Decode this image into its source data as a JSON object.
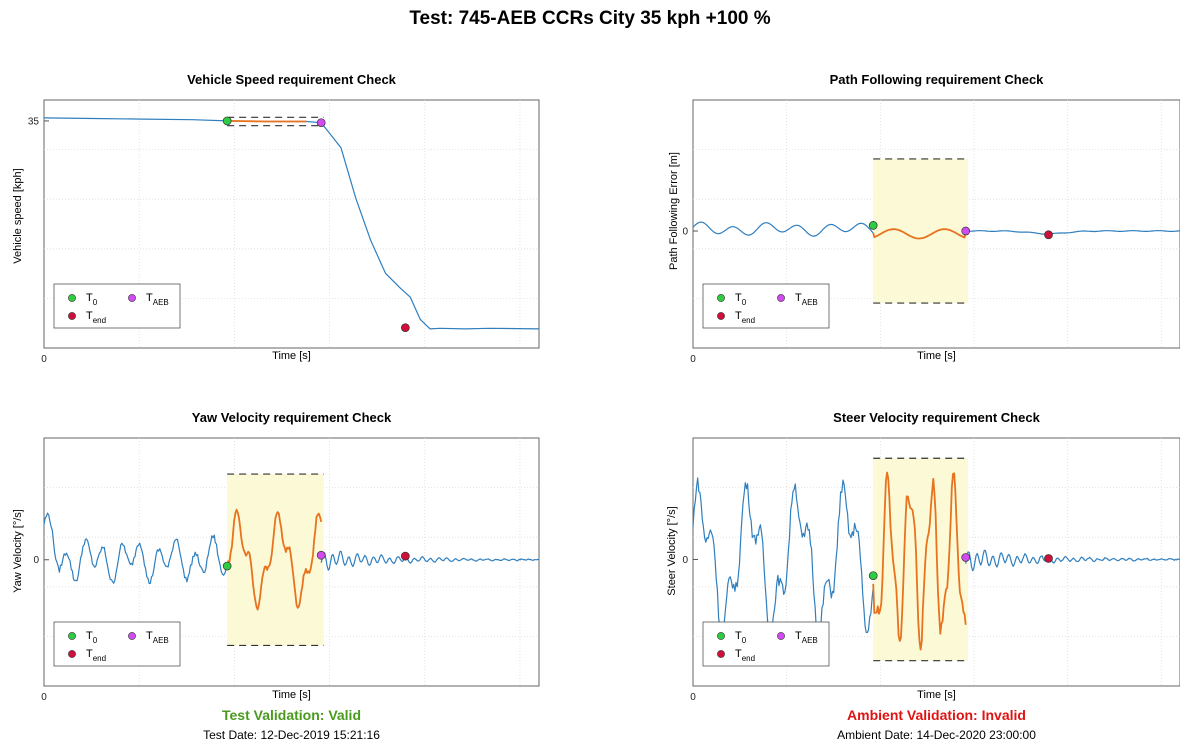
{
  "title": "Test: 745-AEB CCRs City 35 kph +100 %",
  "colors": {
    "signal": "#2f7fbf",
    "window": "#e8731f",
    "band": "#fbf9d6",
    "t0": "#2ecc40",
    "tend": "#d0103a",
    "taeb": "#d24bf0",
    "valid": "#4a9a1e",
    "invalid": "#e01313"
  },
  "legend": {
    "t0": "T",
    "t0_sub": "0",
    "taeb": "T",
    "taeb_sub": "AEB",
    "tend": "T",
    "tend_sub": "end"
  },
  "chart_data": [
    {
      "type": "line",
      "title": "Vehicle Speed requirement Check",
      "xlabel": "Time [s]",
      "ylabel": "Vehicle speed [kph]",
      "xtick_labels": [
        "0"
      ],
      "ytick_labels": [
        "35"
      ],
      "grid": true,
      "legend_position": "bottom-left",
      "series": [
        {
          "role": "signal",
          "x": [
            0,
            0.1,
            0.2,
            0.3,
            0.37,
            0.45,
            0.53,
            0.56,
            0.6,
            0.63,
            0.66,
            0.69,
            0.72,
            0.74,
            0.76,
            0.78,
            0.8,
            0.85,
            0.9,
            1.0
          ],
          "y": [
            35.5,
            35.4,
            35.3,
            35.2,
            35.0,
            34.9,
            34.9,
            34.7,
            30.5,
            22,
            15,
            9.5,
            7,
            5.5,
            1.8,
            0.2,
            0.3,
            0.2,
            0.3,
            0.2
          ]
        },
        {
          "role": "window",
          "x": [
            0.37,
            0.45,
            0.53
          ],
          "y": [
            35.0,
            34.9,
            34.9
          ]
        }
      ],
      "band": {
        "x": [
          0.37,
          0.565
        ],
        "y": [
          34.2,
          35.6
        ]
      },
      "markers": {
        "t0": [
          0.37,
          35.0
        ],
        "taeb": [
          0.56,
          34.7
        ],
        "tend": [
          0.73,
          0.4
        ]
      }
    },
    {
      "type": "line",
      "title": "Path Following requirement Check",
      "xlabel": "Time [s]",
      "ylabel": "Path Following Error [m]",
      "xtick_labels": [
        "0"
      ],
      "ytick_labels": [
        "0"
      ],
      "grid": true,
      "legend_position": "bottom-left",
      "series": [
        {
          "role": "signal",
          "style": "wavy-low",
          "x": [
            0,
            0.37
          ],
          "y": [
            0.0,
            0.0
          ]
        },
        {
          "role": "window",
          "style": "wavy-low",
          "x": [
            0.37,
            0.56
          ],
          "y": [
            0.0,
            0.0
          ]
        },
        {
          "role": "signal",
          "style": "flat",
          "x": [
            0.56,
            1.0
          ],
          "y": [
            0.0,
            0.0
          ]
        }
      ],
      "band": {
        "x": [
          0.37,
          0.565
        ],
        "y": [
          -0.77,
          0.77
        ]
      },
      "markers": {
        "t0": [
          0.37,
          0.06
        ],
        "taeb": [
          0.56,
          0.0
        ],
        "tend": [
          0.73,
          -0.04
        ]
      }
    },
    {
      "type": "line",
      "title": "Yaw Velocity requirement Check",
      "xlabel": "Time [s]",
      "ylabel": "Yaw Velocity [°/s]",
      "xtick_labels": [
        "0"
      ],
      "ytick_labels": [
        "0"
      ],
      "grid": true,
      "legend_position": "bottom-left",
      "series": [
        {
          "role": "signal",
          "style": "oscillating",
          "x": [
            0,
            0.37
          ],
          "y": [
            0.0,
            0.0
          ]
        },
        {
          "role": "window",
          "style": "oscillating",
          "x": [
            0.37,
            0.56
          ],
          "y": [
            0.0,
            0.0
          ]
        },
        {
          "role": "signal",
          "style": "decaying",
          "x": [
            0.56,
            1.0
          ],
          "y": [
            0.0,
            0.0
          ]
        }
      ],
      "band": {
        "x": [
          0.37,
          0.565
        ],
        "y": [
          -0.95,
          0.95
        ]
      },
      "markers": {
        "t0": [
          0.37,
          -0.07
        ],
        "taeb": [
          0.56,
          0.05
        ],
        "tend": [
          0.73,
          0.04
        ]
      }
    },
    {
      "type": "line",
      "title": "Steer Velocity requirement Check",
      "xlabel": "Time [s]",
      "ylabel": "Steer Velocity [°/s]",
      "xtick_labels": [
        "0"
      ],
      "ytick_labels": [
        "0"
      ],
      "grid": true,
      "legend_position": "bottom-left",
      "series": [
        {
          "role": "signal",
          "style": "large-oscillating",
          "x": [
            0,
            0.37
          ],
          "y": [
            0.0,
            0.0
          ]
        },
        {
          "role": "window",
          "style": "large-oscillating",
          "x": [
            0.37,
            0.56
          ],
          "y": [
            0.0,
            0.0
          ]
        },
        {
          "role": "signal",
          "style": "decaying",
          "x": [
            0.56,
            1.0
          ],
          "y": [
            0.0,
            0.0
          ]
        }
      ],
      "band": {
        "x": [
          0.37,
          0.565
        ],
        "y": [
          -1.0,
          1.0
        ]
      },
      "markers": {
        "t0": [
          0.37,
          -0.16
        ],
        "taeb": [
          0.56,
          0.02
        ],
        "tend": [
          0.73,
          0.01
        ]
      }
    }
  ],
  "test_validation": "Test Validation: Valid",
  "test_date": "Test Date: 12-Dec-2019 15:21:16",
  "ambient_validation": "Ambient Validation: Invalid",
  "ambient_date": "Ambient Date: 14-Dec-2020 23:00:00"
}
